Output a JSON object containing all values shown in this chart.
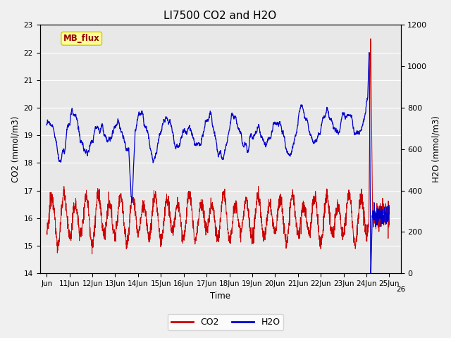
{
  "title": "LI7500 CO2 and H2O",
  "xlabel": "Time",
  "ylabel_left": "CO2 (mmol/m3)",
  "ylabel_right": "H2O (mmol/m3)",
  "ylim_left": [
    14.0,
    23.0
  ],
  "ylim_right": [
    0,
    1200
  ],
  "background_color": "#e8e8e8",
  "grid_color": "#ffffff",
  "co2_color": "#cc0000",
  "h2o_color": "#0000cc",
  "legend_co2": "CO2",
  "legend_h2o": "H2O",
  "annotation_text": "MB_flux",
  "annotation_bg": "#ffff99",
  "annotation_border": "#cccc00",
  "fig_bg": "#f0f0f0"
}
